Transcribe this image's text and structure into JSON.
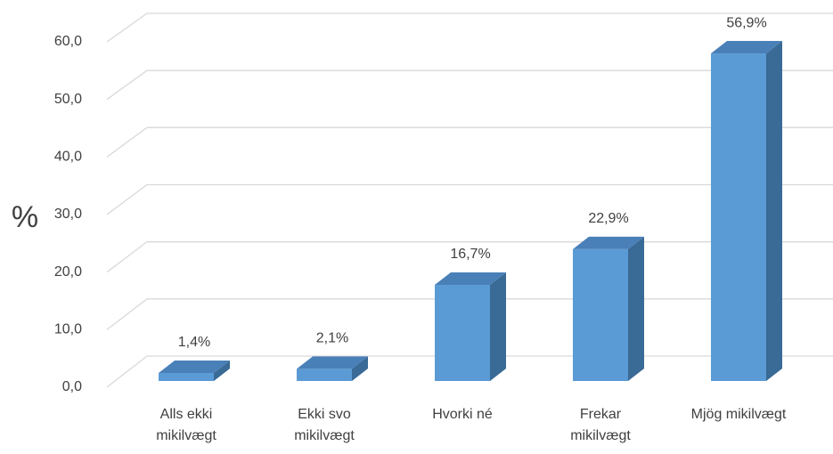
{
  "chart_data": {
    "type": "bar3d",
    "y_label": "%",
    "categories": [
      "Alls ekki mikilvægt",
      "Ekki svo mikilvægt",
      "Hvorki né",
      "Frekar mikilvægt",
      "Mjög mikilvægt"
    ],
    "values": [
      1.4,
      2.1,
      16.7,
      22.9,
      56.9
    ],
    "value_labels": [
      "1,4%",
      "2,1%",
      "16,7%",
      "22,9%",
      "56,9%"
    ],
    "color": "#5b9bd5",
    "ylim": [
      0,
      60
    ],
    "yticks": [
      {
        "value": 0,
        "label": "0,0"
      },
      {
        "value": 10,
        "label": "10,0"
      },
      {
        "value": 20,
        "label": "20,0"
      },
      {
        "value": 30,
        "label": "30,0"
      },
      {
        "value": 40,
        "label": "40,0"
      },
      {
        "value": 50,
        "label": "50,0"
      },
      {
        "value": 60,
        "label": "60,0"
      }
    ],
    "grid": true
  }
}
